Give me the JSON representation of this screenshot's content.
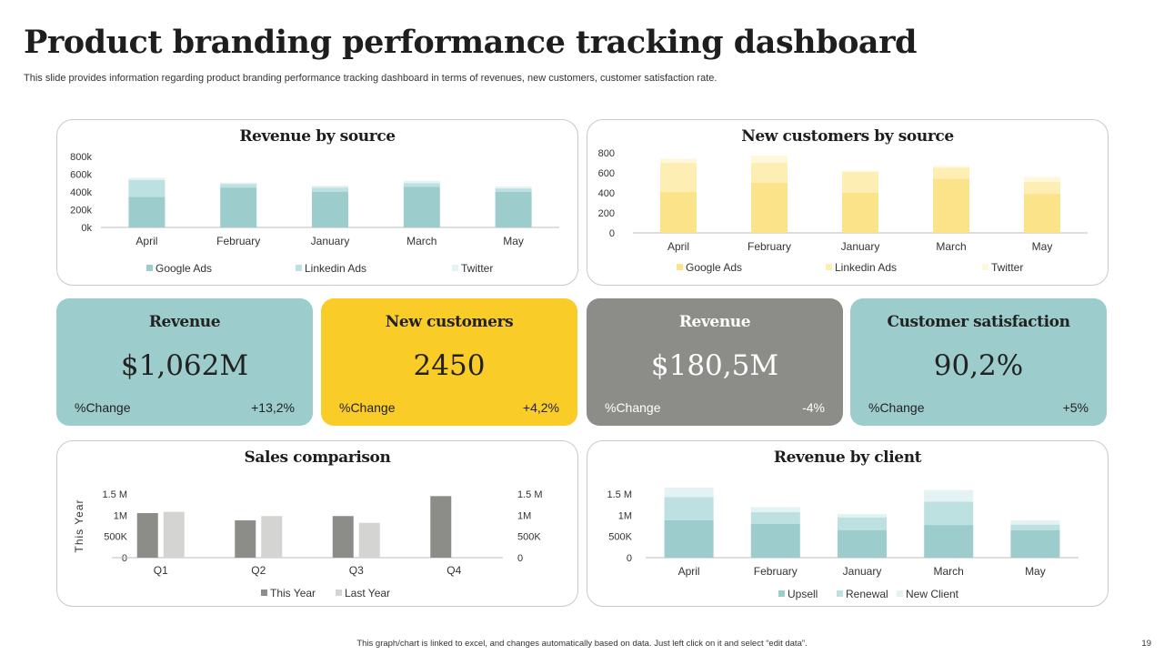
{
  "title": "Product branding performance tracking dashboard",
  "subtitle": "This slide provides information regarding product branding performance tracking dashboard in terms of revenues, new customers, customer satisfaction rate.",
  "footer_note": "This graph/chart is linked to excel, and changes automatically based on data. Just left click on it and select “edit data”.",
  "page_number": "19",
  "colors": {
    "teal": "#9ccccc",
    "teal_light": "#bde0e0",
    "teal_lighter": "#e3f2f2",
    "yellow": "#fbe38a",
    "yellow_light": "#fdeeb4",
    "yellow_lighter": "#fef7da",
    "gray_dark": "#8c8c89",
    "gray_light": "#d4d4d2",
    "kpi_teal": "#9ccccc",
    "kpi_yellow": "#f9cc28",
    "kpi_gray": "#8c8c89"
  },
  "kpis": [
    {
      "title": "Revenue",
      "value": "$1,062M",
      "change_label": "%Change",
      "change_value": "+13,2%"
    },
    {
      "title": "New customers",
      "value": "2450",
      "change_label": "%Change",
      "change_value": "+4,2%"
    },
    {
      "title": "Revenue",
      "value": "$180,5M",
      "change_label": "%Change",
      "change_value": "-4%"
    },
    {
      "title": "Customer satisfaction",
      "value": "90,2%",
      "change_label": "%Change",
      "change_value": "+5%"
    }
  ],
  "chart_data": [
    {
      "id": "revenue-by-source",
      "type": "bar",
      "stacked": true,
      "title": "Revenue by source",
      "categories": [
        "April",
        "February",
        "January",
        "March",
        "May"
      ],
      "series": [
        {
          "name": "Google Ads",
          "values": [
            345,
            450,
            400,
            460,
            400
          ]
        },
        {
          "name": "Linkedin Ads",
          "values": [
            190,
            40,
            50,
            40,
            40
          ]
        },
        {
          "name": "Twitter",
          "values": [
            25,
            15,
            20,
            25,
            20
          ]
        }
      ],
      "ylim": [
        0,
        800
      ],
      "yticks": [
        0,
        200,
        400,
        600,
        800
      ],
      "ytick_labels": [
        "0k",
        "200k",
        "400k",
        "600k",
        "800k"
      ],
      "legend": "bottom"
    },
    {
      "id": "new-customers-by-source",
      "type": "bar",
      "stacked": true,
      "title": "New customers by source",
      "categories": [
        "April",
        "February",
        "January",
        "March",
        "May"
      ],
      "series": [
        {
          "name": "Google Ads",
          "values": [
            410,
            500,
            400,
            540,
            390
          ]
        },
        {
          "name": "Linkedin Ads",
          "values": [
            290,
            200,
            210,
            110,
            120
          ]
        },
        {
          "name": "Twitter",
          "values": [
            40,
            70,
            10,
            20,
            50
          ]
        }
      ],
      "ylim": [
        0,
        800
      ],
      "yticks": [
        0,
        200,
        400,
        600,
        800
      ],
      "ytick_labels": [
        "0",
        "200",
        "400",
        "600",
        "800"
      ],
      "legend": "bottom"
    },
    {
      "id": "sales-comparison",
      "type": "bar",
      "stacked": false,
      "title": "Sales comparison",
      "categories": [
        "Q1",
        "Q2",
        "Q3",
        "Q4"
      ],
      "series": [
        {
          "name": "This Year",
          "values": [
            1.05,
            0.88,
            0.98,
            1.45
          ]
        },
        {
          "name": "Last Year",
          "values": [
            1.08,
            0.98,
            0.82,
            null
          ]
        }
      ],
      "ylabel": "This Year",
      "ylim": [
        0,
        1.5
      ],
      "yticks": [
        0,
        0.5,
        1,
        1.5
      ],
      "ytick_labels": [
        "0",
        "500K",
        "1M",
        "1.5 M"
      ],
      "secondary_ytick_labels": [
        "0",
        "500K",
        "1M",
        "1.5 M"
      ],
      "legend": "bottom"
    },
    {
      "id": "revenue-by-client",
      "type": "bar",
      "stacked": true,
      "title": "Revenue by client",
      "categories": [
        "April",
        "February",
        "January",
        "March",
        "May"
      ],
      "series": [
        {
          "name": "Upsell",
          "values": [
            0.88,
            0.8,
            0.65,
            0.77,
            0.65
          ]
        },
        {
          "name": "Renewal",
          "values": [
            0.55,
            0.27,
            0.3,
            0.55,
            0.13
          ]
        },
        {
          "name": "New Client",
          "values": [
            0.22,
            0.12,
            0.08,
            0.27,
            0.1
          ]
        }
      ],
      "ylim": [
        0,
        1.5
      ],
      "yticks": [
        0,
        0.5,
        1,
        1.5
      ],
      "ytick_labels": [
        "0",
        "500K",
        "1M",
        "1.5 M"
      ],
      "legend": "bottom"
    }
  ]
}
